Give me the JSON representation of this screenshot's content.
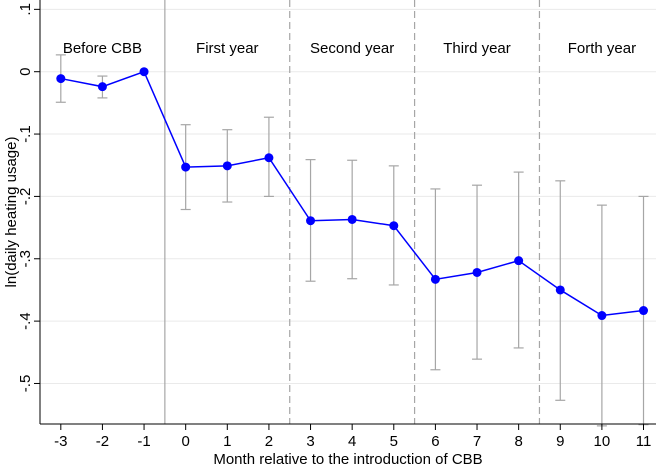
{
  "chart_data": {
    "type": "line",
    "title": "",
    "xlabel": "Month relative to the introduction of CBB",
    "ylabel": "ln(daily heating usage)",
    "x": [
      -3,
      -2,
      -1,
      0,
      1,
      2,
      3,
      4,
      5,
      6,
      7,
      8,
      9,
      10,
      11
    ],
    "xlim": [
      -3.5,
      11.3
    ],
    "ylim": [
      -0.565,
      0.115
    ],
    "yticks": [
      0.1,
      0,
      -0.1,
      -0.2,
      -0.3,
      -0.4,
      -0.5
    ],
    "ytick_labels": [
      ".1",
      "0",
      "-.1",
      "-.2",
      "-.3",
      "-.4",
      "-.5"
    ],
    "xtick_labels": [
      "-3",
      "-2",
      "-1",
      "0",
      "1",
      "2",
      "3",
      "4",
      "5",
      "6",
      "7",
      "8",
      "9",
      "10",
      "11"
    ],
    "grid": true,
    "series": [
      {
        "values": [
          -0.011,
          -0.024,
          0.0,
          -0.153,
          -0.151,
          -0.138,
          -0.239,
          -0.237,
          -0.247,
          -0.333,
          -0.322,
          -0.303,
          -0.35,
          -0.391,
          -0.383
        ],
        "ci_low": [
          -0.049,
          -0.042,
          0.0,
          -0.221,
          -0.209,
          -0.2,
          -0.336,
          -0.332,
          -0.342,
          -0.478,
          -0.461,
          -0.443,
          -0.527,
          -0.568,
          -0.566
        ],
        "ci_high": [
          0.027,
          -0.007,
          0.0,
          -0.085,
          -0.093,
          -0.073,
          -0.141,
          -0.142,
          -0.151,
          -0.188,
          -0.182,
          -0.161,
          -0.175,
          -0.214,
          -0.2
        ],
        "color": "#0000ff"
      }
    ],
    "period_separators": [
      {
        "x": -0.5,
        "style": "solid"
      },
      {
        "x": 2.5,
        "style": "dashed"
      },
      {
        "x": 5.5,
        "style": "dashed"
      },
      {
        "x": 8.5,
        "style": "dashed"
      }
    ],
    "period_labels": [
      {
        "text": "Before CBB",
        "x_center": -2.0
      },
      {
        "text": "First year",
        "x_center": 1.0
      },
      {
        "text": "Second year",
        "x_center": 4.0
      },
      {
        "text": "Third year",
        "x_center": 7.0
      },
      {
        "text": "Forth year",
        "x_center": 10.0
      }
    ],
    "colors": {
      "series": "#0000ff",
      "ci": "#a6a6a6",
      "grid": "#eaeaea",
      "separator": "#a6a6a6",
      "axis": "#000000"
    }
  }
}
